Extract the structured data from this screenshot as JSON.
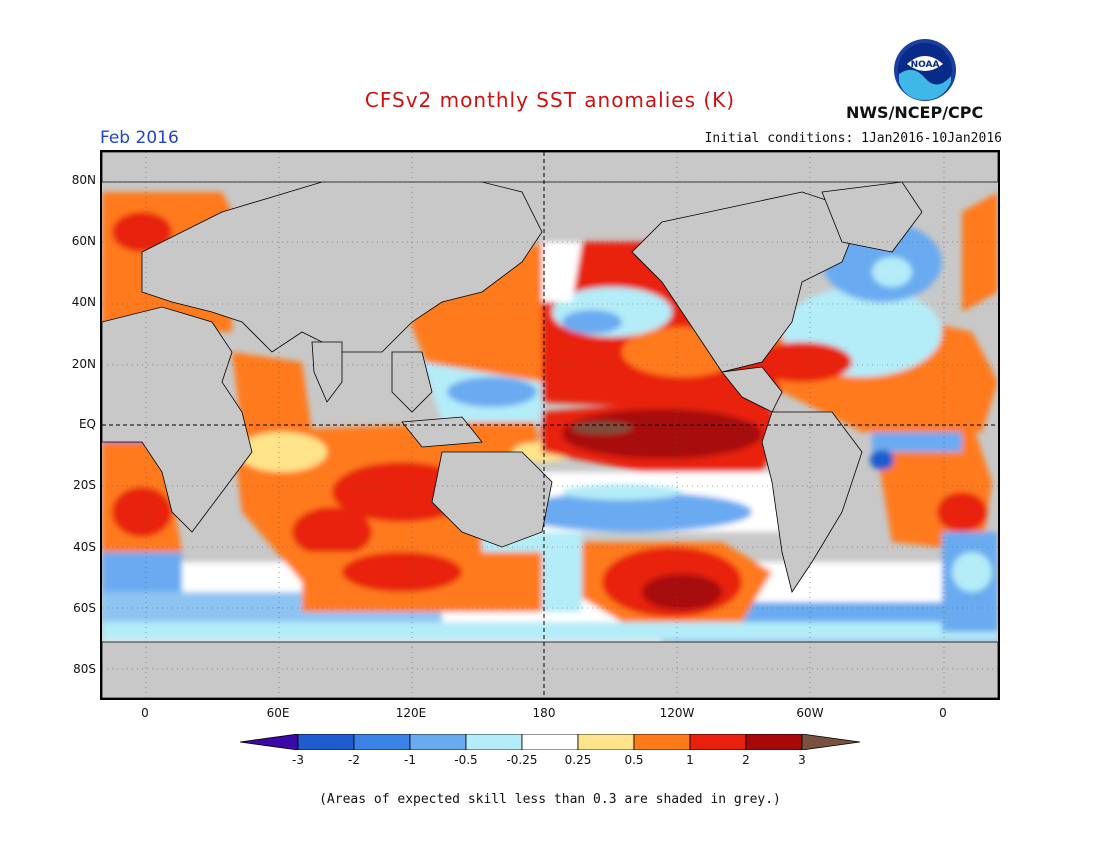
{
  "header": {
    "title": "CFSv2 monthly SST anomalies (K)",
    "month": "Feb 2016",
    "initial_conditions": "Initial conditions: 1Jan2016-10Jan2016",
    "organization": "NWS/NCEP/CPC",
    "logo_text": "NOAA"
  },
  "axes": {
    "lat_labels": [
      "80N",
      "60N",
      "40N",
      "20N",
      "EQ",
      "20S",
      "40S",
      "60S",
      "80S"
    ],
    "lon_labels": [
      "0",
      "60E",
      "120E",
      "180",
      "120W",
      "60W",
      "0"
    ]
  },
  "legend": {
    "labels": [
      "-3",
      "-2",
      "-1",
      "-0.5",
      "-0.25",
      "0.25",
      "0.5",
      "1",
      "2",
      "3"
    ],
    "colors": [
      "#3a0aa8",
      "#1e5ccf",
      "#3a82e6",
      "#6aaaf0",
      "#b4ecf8",
      "#ffffff",
      "#ffe38a",
      "#ff7a1a",
      "#e8200e",
      "#a80808",
      "#7a5040"
    ]
  },
  "footnote": "(Areas of expected skill less than 0.3 are shaded in grey.)",
  "colors": {
    "title": "#d01010",
    "month": "#2244cc",
    "land": "#c8c8c8"
  }
}
